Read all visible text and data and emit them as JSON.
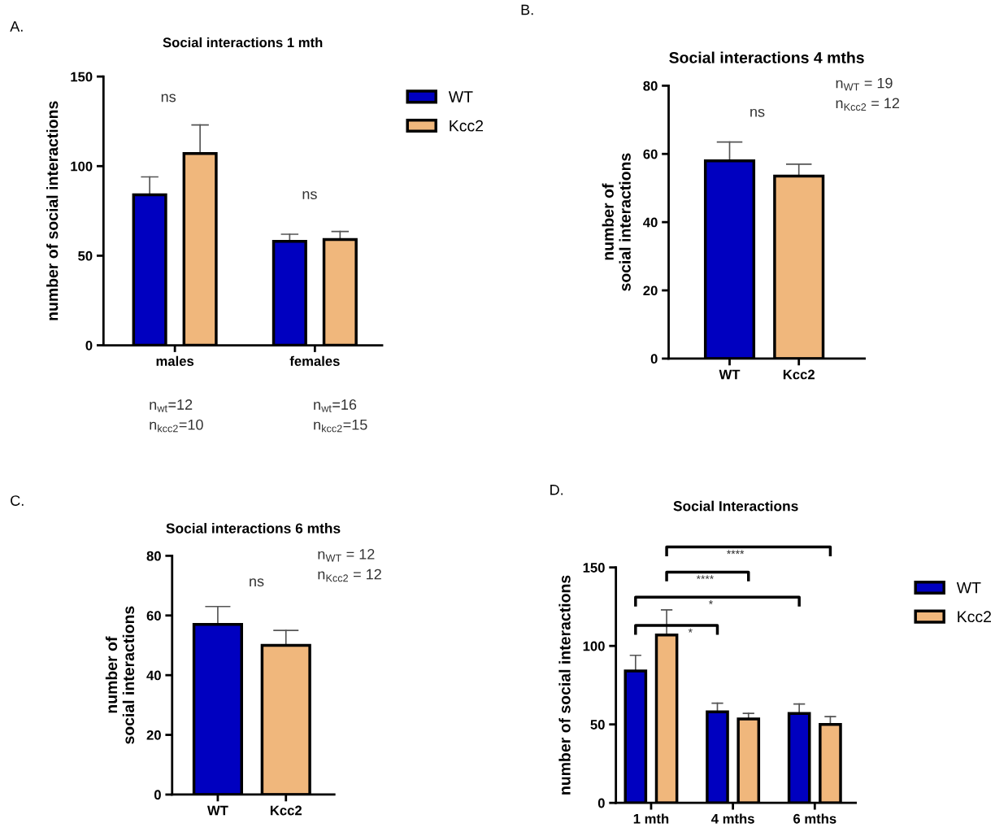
{
  "chart_data": [
    {
      "type": "bar",
      "title": "Social interactions 1 mth",
      "ylabel": "number of social interactions",
      "categories": [
        "males",
        "females"
      ],
      "series": [
        {
          "name": "WT",
          "color": "#0000c0",
          "values": [
            84,
            58
          ],
          "errors": [
            [
              84,
              94
            ],
            [
              58,
              62
            ]
          ]
        },
        {
          "name": "Kcc2",
          "color": "#f0b77c",
          "values": [
            107,
            59
          ],
          "errors": [
            [
              107,
              123
            ],
            [
              59,
              63.5
            ]
          ]
        }
      ],
      "ylim": [
        0,
        150
      ],
      "yticks": [
        0,
        50,
        100,
        150
      ],
      "legend": "top right",
      "grid": false,
      "annotations": [
        "A.",
        "ns",
        "ns",
        "n$_{wt}$=12\nn$_{kcc2}$=10",
        "n$_{wt}$=16\nn$_{kcc2}$=15"
      ]
    },
    {
      "type": "bar",
      "title": "Social interactions 4 mths",
      "ylabel": "number of\nsocial interactions",
      "categories": [
        "WT",
        "Kcc2"
      ],
      "values": [
        58,
        53.5
      ],
      "colors": [
        "#0000c0",
        "#f0b77c"
      ],
      "errors": [
        [
          58,
          63.5
        ],
        [
          53.5,
          57
        ]
      ],
      "ylim": [
        0,
        80
      ],
      "yticks": [
        0,
        20,
        40,
        60,
        80
      ],
      "grid": false,
      "annotations": [
        "B.",
        "ns",
        "n$_{WT}$ = 19\nn$_{Kcc2}$ = 12"
      ]
    },
    {
      "type": "bar",
      "title": "Social interactions 6 mths",
      "ylabel": "number of\nsocial interactions",
      "categories": [
        "WT",
        "Kcc2"
      ],
      "values": [
        57,
        50
      ],
      "colors": [
        "#0000c0",
        "#f0b77c"
      ],
      "errors": [
        [
          57,
          63
        ],
        [
          50,
          55
        ]
      ],
      "ylim": [
        0,
        80
      ],
      "yticks": [
        0,
        20,
        40,
        60,
        80
      ],
      "grid": false,
      "annotations": [
        "C.",
        "ns",
        "n$_{WT}$ = 12\nn$_{Kcc2}$ = 12"
      ]
    },
    {
      "type": "bar",
      "title": "Social Interactions",
      "ylabel": "number of social interactions",
      "categories": [
        "1 mth",
        "4 mths",
        "6 mths"
      ],
      "series": [
        {
          "name": "WT",
          "color": "#0000c0",
          "values": [
            84,
            58,
            57
          ],
          "errors": [
            [
              84,
              94
            ],
            [
              58,
              63.5
            ],
            [
              57,
              63
            ]
          ]
        },
        {
          "name": "Kcc2",
          "color": "#f0b77c",
          "values": [
            107,
            53.5,
            50
          ],
          "errors": [
            [
              107,
              123
            ],
            [
              53.5,
              57
            ],
            [
              50,
              55
            ]
          ]
        }
      ],
      "ylim": [
        0,
        150
      ],
      "yticks": [
        0,
        50,
        100,
        150
      ],
      "legend": "top right",
      "grid": false,
      "annotations": [
        "D.",
        "****",
        "****",
        "*",
        "*"
      ]
    }
  ]
}
